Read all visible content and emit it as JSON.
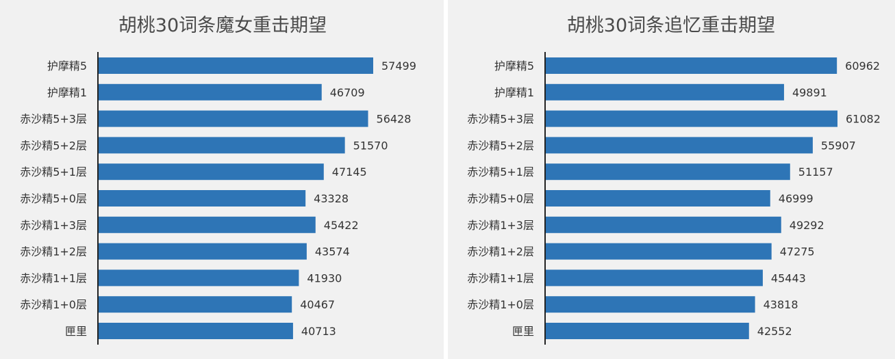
{
  "chart_data": [
    {
      "type": "bar",
      "orientation": "horizontal",
      "title": "胡桃30词条魔女重击期望",
      "categories": [
        "护摩精5",
        "护摩精1",
        "赤沙精5+3层",
        "赤沙精5+2层",
        "赤沙精5+1层",
        "赤沙精5+0层",
        "赤沙精1+3层",
        "赤沙精1+2层",
        "赤沙精1+1层",
        "赤沙精1+0层",
        "匣里"
      ],
      "values": [
        57499,
        46709,
        56428,
        51570,
        47145,
        43328,
        45422,
        43574,
        41930,
        40467,
        40713
      ],
      "xlim": [
        0,
        57499
      ],
      "data_labels": true,
      "grid": false,
      "bar_color": "#2e75b6"
    },
    {
      "type": "bar",
      "orientation": "horizontal",
      "title": "胡桃30词条追忆重击期望",
      "categories": [
        "护摩精5",
        "护摩精1",
        "赤沙精5+3层",
        "赤沙精5+2层",
        "赤沙精5+1层",
        "赤沙精5+0层",
        "赤沙精1+3层",
        "赤沙精1+2层",
        "赤沙精1+1层",
        "赤沙精1+0层",
        "匣里"
      ],
      "values": [
        60962,
        49891,
        61082,
        55907,
        51157,
        46999,
        49292,
        47275,
        45443,
        43818,
        42552
      ],
      "xlim": [
        0,
        61082
      ],
      "data_labels": true,
      "grid": false,
      "bar_color": "#2e75b6"
    }
  ]
}
